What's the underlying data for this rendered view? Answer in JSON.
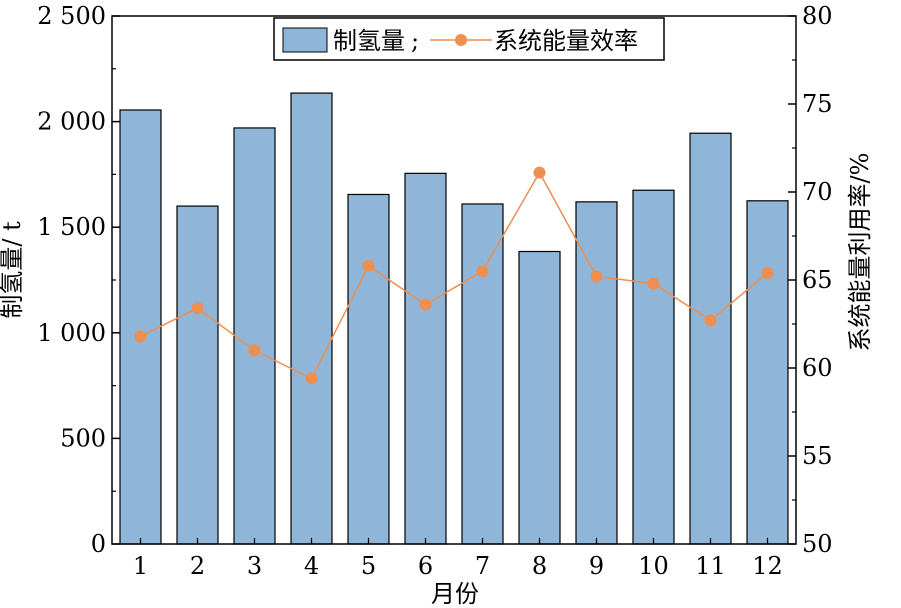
{
  "chart_data": {
    "type": "bar",
    "categories": [
      "1",
      "2",
      "3",
      "4",
      "5",
      "6",
      "7",
      "8",
      "9",
      "10",
      "11",
      "12"
    ],
    "series": [
      {
        "name": "制氢量",
        "type": "bar",
        "axis": "left",
        "color": "#8fb5d8",
        "values": [
          2055,
          1600,
          1970,
          2135,
          1655,
          1755,
          1610,
          1385,
          1620,
          1675,
          1945,
          1625
        ]
      },
      {
        "name": "系统能量效率",
        "type": "line",
        "axis": "right",
        "color": "#ec8f50",
        "values": [
          61.8,
          63.4,
          61.0,
          59.4,
          65.8,
          63.6,
          65.5,
          71.1,
          65.2,
          64.8,
          62.7,
          65.4
        ]
      }
    ],
    "xlabel": "月份",
    "ylabel": "制氢量/ t",
    "y2label": "系统能量利用率/%",
    "ylim": [
      0,
      2500
    ],
    "y2lim": [
      50,
      80
    ],
    "yticks": [
      "0",
      "500",
      "1 000",
      "1 500",
      "2 000",
      "2 500"
    ],
    "y2ticks": [
      "50",
      "55",
      "60",
      "65",
      "70",
      "75",
      "80"
    ],
    "legend": {
      "position": "top-center",
      "separator": ";"
    },
    "grid": false
  }
}
